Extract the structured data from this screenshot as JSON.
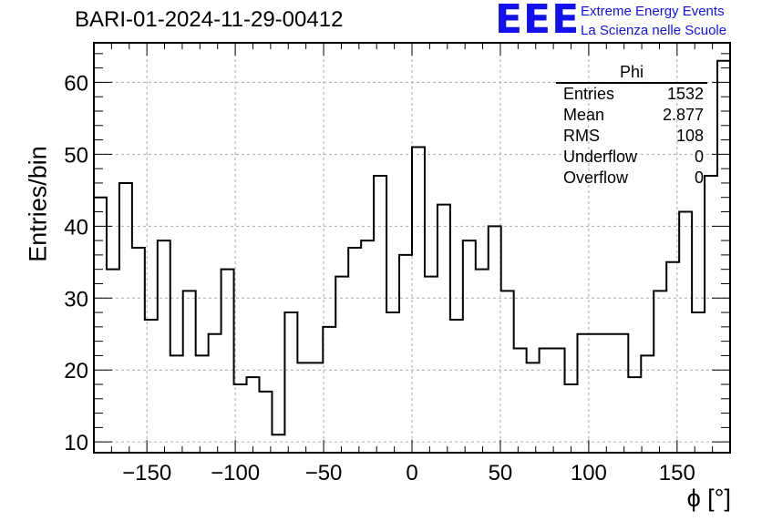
{
  "header": {
    "title": "BARI-01-2024-11-29-00412",
    "logo_text": "EEE",
    "tagline_1": "Extreme Energy Events",
    "tagline_2": "La Scienza nelle Scuole",
    "brand_color": "#1111ee"
  },
  "stats_box": {
    "name": "Phi",
    "rows": [
      {
        "label": "Entries",
        "value": "1532"
      },
      {
        "label": "Mean",
        "value": "2.877"
      },
      {
        "label": "RMS",
        "value": "108"
      },
      {
        "label": "Underflow",
        "value": "0"
      },
      {
        "label": "Overflow",
        "value": "0"
      }
    ]
  },
  "chart_data": {
    "type": "bar",
    "style": "step-histogram",
    "title": "BARI-01-2024-11-29-00412",
    "xlabel": "ϕ [°]",
    "ylabel": "Entries/bin",
    "xlim": [
      -180,
      180
    ],
    "ylim": [
      8.5,
      65.5
    ],
    "bin_width": 7.2,
    "x_ticks": [
      -150,
      -100,
      -50,
      0,
      50,
      100,
      150
    ],
    "x_tick_labels": [
      "−150",
      "−100",
      "−50",
      "0",
      "50",
      "100",
      "150"
    ],
    "y_ticks": [
      10,
      20,
      30,
      40,
      50,
      60
    ],
    "y_tick_labels": [
      "10",
      "20",
      "30",
      "40",
      "50",
      "60"
    ],
    "grid": true,
    "legend": "top-right",
    "values": [
      44,
      34,
      46,
      37,
      27,
      38,
      22,
      31,
      22,
      25,
      34,
      18,
      19,
      17,
      11,
      28,
      21,
      21,
      26,
      33,
      37,
      38,
      47,
      28,
      36,
      51,
      33,
      43,
      27,
      38,
      34,
      40,
      31,
      23,
      21,
      23,
      23,
      18,
      25,
      25,
      25,
      25,
      19,
      22,
      31,
      35,
      42,
      28,
      47,
      63
    ]
  }
}
